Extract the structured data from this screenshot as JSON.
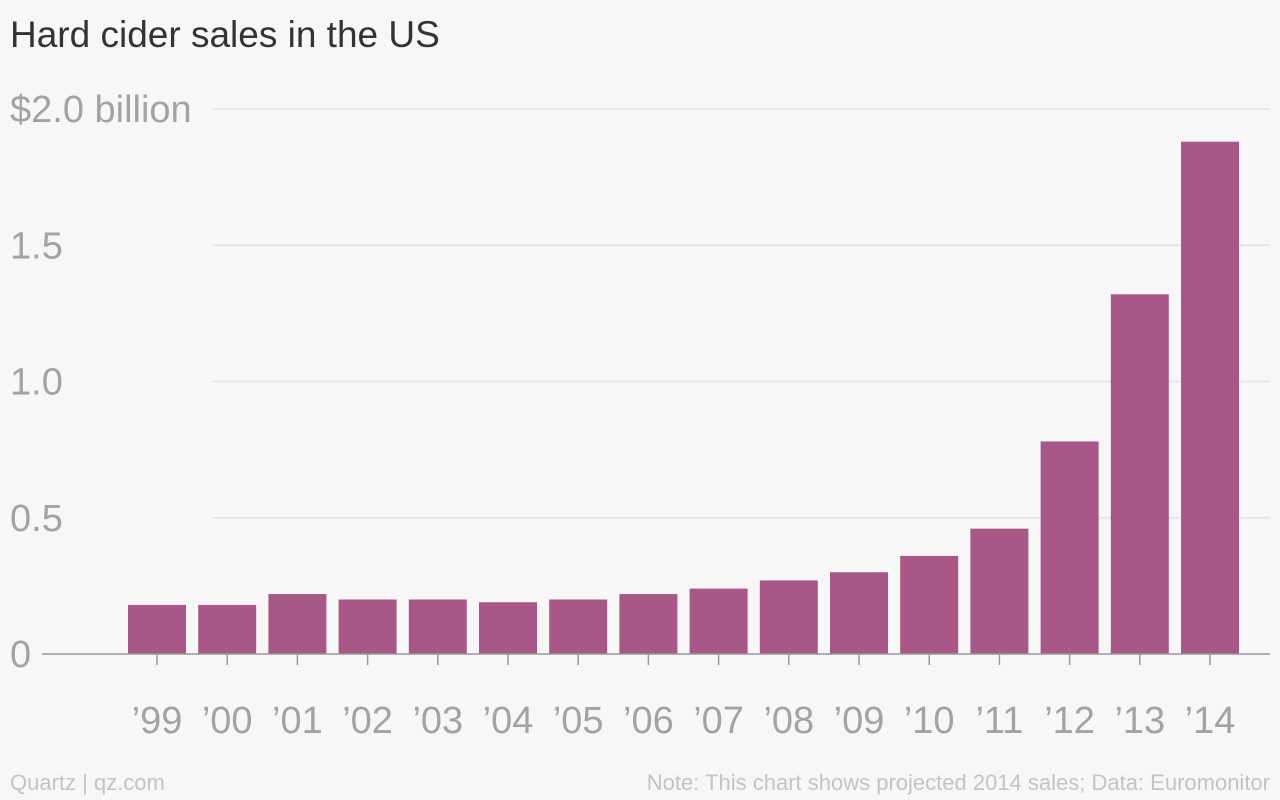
{
  "chart_data": {
    "type": "bar",
    "title": "Hard cider sales in the US",
    "categories": [
      "’99",
      "’00",
      "’01",
      "’02",
      "’03",
      "’04",
      "’05",
      "’06",
      "’07",
      "’08",
      "’09",
      "’10",
      "’11",
      "’12",
      "’13",
      "’14"
    ],
    "values": [
      0.18,
      0.18,
      0.22,
      0.2,
      0.2,
      0.19,
      0.2,
      0.22,
      0.24,
      0.27,
      0.3,
      0.36,
      0.46,
      0.78,
      1.32,
      1.88
    ],
    "ylim": [
      0,
      2.0
    ],
    "yticks": [
      {
        "value": 0,
        "label": "0"
      },
      {
        "value": 0.5,
        "label": "0.5"
      },
      {
        "value": 1.0,
        "label": "1.0"
      },
      {
        "value": 1.5,
        "label": "1.5"
      },
      {
        "value": 2.0,
        "label": "$2.0 billion"
      }
    ],
    "grid": true,
    "colors": {
      "bar": "#a95787",
      "grid": "#e3e3e3",
      "axis": "#999999",
      "tick_label": "#a3a3a3"
    }
  },
  "footer": {
    "source": "Quartz | qz.com",
    "note": "Note: This chart shows projected 2014 sales; Data: Euromonitor"
  }
}
